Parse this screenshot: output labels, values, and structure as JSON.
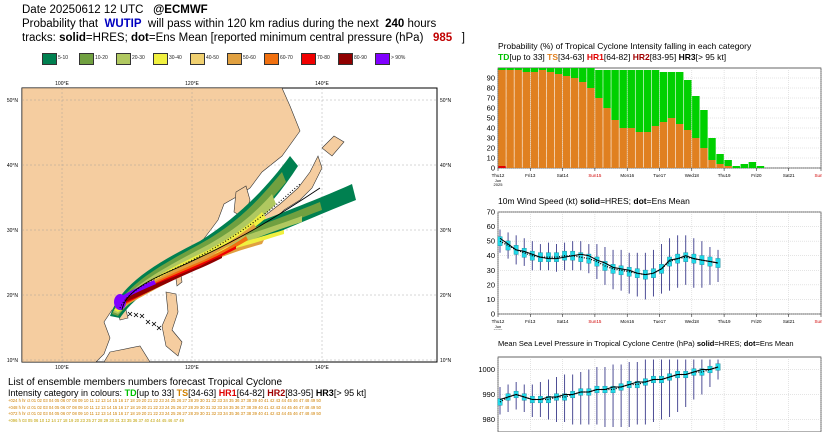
{
  "header": {
    "date_line": "Date 20250612 12 UTC",
    "source": "@ECMWF",
    "prob_prefix": "Probability that",
    "storm_name": "WUTIP",
    "prob_middle": "will pass within 120 km radius during the next",
    "hours": "240",
    "hours_suffix": "hours",
    "tracks_prefix": "tracks:",
    "solid_label": "solid",
    "hres_label": "=HRES;",
    "dot_label": "dot",
    "ens_label": "=Ens Mean [reported minimum central pressure (hPa)",
    "pressure": "985",
    "close_bracket": "]"
  },
  "legend": {
    "items": [
      {
        "label": "5-10",
        "color": "#008050"
      },
      {
        "label": "10-20",
        "color": "#70a040"
      },
      {
        "label": "20-30",
        "color": "#b0c860"
      },
      {
        "label": "30-40",
        "color": "#f0f040"
      },
      {
        "label": "40-50",
        "color": "#f0d070"
      },
      {
        "label": "50-60",
        "color": "#e0a040"
      },
      {
        "label": "60-70",
        "color": "#f07010"
      },
      {
        "label": "70-80",
        "color": "#f00000"
      },
      {
        "label": "80-90",
        "color": "#900000"
      },
      {
        "label": "> 90%",
        "color": "#8000ff"
      }
    ]
  },
  "map": {
    "lon_labels": [
      "100°E",
      "120°E",
      "140°E"
    ],
    "lat_labels": [
      "50°N",
      "40°N",
      "30°N",
      "20°N",
      "10°N"
    ]
  },
  "ensemble_list": {
    "title": "List of ensemble members numbers forecast Tropical Cyclone",
    "subtitle_prefix": "Intensity category in colours:",
    "td": "TD",
    "td_range": "[up to 33]",
    "ts": "TS",
    "ts_range": "[34-63]",
    "hr1": "HR1",
    "hr1_range": "[64-82]",
    "hr2": "HR2",
    "hr2_range": "[83-95]",
    "hr3": "HR3",
    "hr3_range": "[> 95 kt]",
    "rows": [
      "+024 h  hr ct 01 02 03 04 05 06 07 08 09 10 11 12 13 14 15 16 17 18 19 20 21 22 23 24 25 26 27 28 29 30 31 32 33 34 35 36 37 38 39 40 41 42 43 44 45 46 47 48 49 50",
      "+048 h  hr ct 01 02 03 04 05 06 07 08 09 10 11 12 13 14 15 16 17 18 19 20 21 22 23 24 25 26 27 28 29 30 31 32 33 34 35 36 37 38 39 40 41 42 43 44 45 46 47 48 49 50",
      "+072 h  hr ct 01 02 03 04 05 06 07 08 09 10 11 12 13 14 15 16 17 18 19 20 21 22 23 24 25 26 27 28 29 30 31 32 33 34 35 36 37 38 39 40 41 42 43 44 45 46 47 48 49 50",
      "+096 h           03       05 06          10    12       14             17 18 19 20          23    25    27 28 29 30 31    33       35 36 37    40       43 44 45 46 47       49"
    ]
  },
  "chart_data": [
    {
      "type": "bar",
      "title": "Probability (%) of Tropical Cyclone Intensity falling in each category",
      "legend_line": [
        {
          "name": "TD",
          "range": "[up to 33]",
          "color": "#00c000"
        },
        {
          "name": "TS",
          "range": "[34-63]",
          "color": "#e08020"
        },
        {
          "name": "HR1",
          "range": "[64-82]",
          "color": "#e00000"
        },
        {
          "name": "HR2",
          "range": "[83-95]",
          "color": "#a00000"
        },
        {
          "name": "HR3",
          "range": "[> 95 kt]",
          "color": "#000000"
        }
      ],
      "ylim": [
        0,
        100
      ],
      "yticks": [
        0,
        10,
        20,
        30,
        40,
        50,
        60,
        70,
        80,
        90
      ],
      "x_tick_labels": [
        "Thu12",
        "Fri13",
        "Sat14",
        "Sun15",
        "Mon16",
        "Tue17",
        "Wed18",
        "Thu19",
        "Fri20",
        "Sat21",
        "Sun22"
      ],
      "x_sub_label": [
        "Jun",
        "2025"
      ],
      "sunday_color": "#d00000",
      "series": [
        {
          "name": "HR1",
          "color": "#e00000",
          "values": [
            2,
            0,
            0,
            0,
            0,
            0,
            0,
            0,
            0,
            0,
            0,
            0,
            0,
            0,
            0,
            0,
            0,
            0,
            0,
            0,
            0,
            0,
            0,
            0,
            0,
            0,
            0,
            0,
            0,
            0,
            0,
            0,
            0,
            0,
            0,
            0,
            0,
            0,
            0,
            0,
            0,
            0,
            0
          ]
        },
        {
          "name": "TS",
          "color": "#e08020",
          "values": [
            96,
            98,
            98,
            96,
            96,
            98,
            96,
            94,
            92,
            90,
            86,
            80,
            70,
            60,
            48,
            40,
            40,
            36,
            36,
            42,
            46,
            50,
            44,
            38,
            30,
            20,
            8,
            4,
            2,
            0,
            0,
            0,
            0,
            0,
            0,
            0,
            0,
            0,
            0,
            0,
            0,
            0,
            0
          ]
        },
        {
          "name": "TD",
          "color": "#00d000",
          "values": [
            2,
            2,
            2,
            4,
            4,
            2,
            4,
            6,
            8,
            10,
            14,
            20,
            28,
            38,
            50,
            58,
            58,
            62,
            62,
            56,
            50,
            46,
            52,
            50,
            42,
            38,
            22,
            10,
            6,
            2,
            4,
            6,
            2,
            0,
            0,
            0,
            0,
            0,
            0,
            0,
            0,
            0,
            0
          ]
        }
      ]
    },
    {
      "type": "line",
      "title_prefix": "10m Wind Speed (kt)",
      "title_solid": "solid",
      "title_hres": "=HRES;",
      "title_dot": "dot",
      "title_ens": "=Ens Mean",
      "ylim": [
        0,
        70
      ],
      "yticks": [
        0,
        10,
        20,
        30,
        40,
        50,
        60,
        70
      ],
      "x_tick_labels": [
        "Thu12",
        "Fri13",
        "Sat14",
        "Sun15",
        "Mon16",
        "Tue17",
        "Wed18",
        "Thu19",
        "Fri20",
        "Sat21",
        "Sun22"
      ],
      "x_sub_label": [
        "Jun",
        "2025"
      ],
      "series": [
        {
          "name": "HRES",
          "values": [
            52,
            48,
            44,
            43,
            41,
            39,
            38,
            38,
            39,
            40,
            41,
            40,
            37,
            35,
            32,
            31,
            30,
            28,
            27,
            28,
            31,
            37,
            38,
            40,
            38,
            37,
            36,
            35
          ]
        },
        {
          "name": "Ens Mean",
          "values": [
            50,
            47,
            44,
            42,
            40,
            39,
            39,
            39,
            40,
            40,
            39,
            38,
            36,
            33,
            31,
            30,
            29,
            28,
            27,
            28,
            31,
            36,
            38,
            39,
            38,
            37,
            36,
            35
          ]
        }
      ],
      "spread": [
        [
          42,
          58
        ],
        [
          38,
          56
        ],
        [
          34,
          54
        ],
        [
          33,
          52
        ],
        [
          30,
          50
        ],
        [
          30,
          48
        ],
        [
          30,
          49
        ],
        [
          29,
          48
        ],
        [
          30,
          49
        ],
        [
          30,
          50
        ],
        [
          30,
          50
        ],
        [
          28,
          48
        ],
        [
          24,
          48
        ],
        [
          20,
          46
        ],
        [
          17,
          44
        ],
        [
          16,
          44
        ],
        [
          14,
          42
        ],
        [
          12,
          42
        ],
        [
          10,
          42
        ],
        [
          12,
          44
        ],
        [
          14,
          48
        ],
        [
          16,
          52
        ],
        [
          18,
          54
        ],
        [
          20,
          54
        ],
        [
          18,
          52
        ],
        [
          18,
          50
        ],
        [
          20,
          46
        ],
        [
          22,
          44
        ]
      ]
    },
    {
      "type": "line",
      "title_prefix": "Mean Sea Level Pressure in Tropical Cyclone Centre (hPa)",
      "title_solid": "solid",
      "title_hres": "=HRES;",
      "title_dot": "dot",
      "title_ens": "=Ens Mean",
      "ylim": [
        975,
        1005
      ],
      "yticks": [
        980,
        990,
        1000
      ],
      "series": [
        {
          "name": "HRES",
          "values": [
            988,
            989,
            990,
            989,
            988,
            988,
            989,
            989,
            990,
            990,
            991,
            991,
            992,
            992,
            993,
            993,
            994,
            995,
            995,
            996,
            996,
            997,
            998,
            998,
            999,
            1000,
            1000,
            1001
          ]
        },
        {
          "name": "Ens Mean",
          "values": [
            987,
            989,
            990,
            989,
            988,
            988,
            988,
            989,
            989,
            990,
            991,
            991,
            992,
            992,
            992,
            993,
            994,
            994,
            995,
            996,
            996,
            997,
            998,
            998,
            999,
            999,
            1000,
            1001
          ]
        }
      ],
      "spread": [
        [
          982,
          993
        ],
        [
          983,
          994
        ],
        [
          984,
          995
        ],
        [
          983,
          994
        ],
        [
          981,
          994
        ],
        [
          981,
          995
        ],
        [
          980,
          996
        ],
        [
          979,
          997
        ],
        [
          979,
          998
        ],
        [
          978,
          998
        ],
        [
          978,
          999
        ],
        [
          978,
          1000
        ],
        [
          978,
          1001
        ],
        [
          977,
          1001
        ],
        [
          977,
          1002
        ],
        [
          977,
          1002
        ],
        [
          977,
          1003
        ],
        [
          978,
          1003
        ],
        [
          978,
          1004
        ],
        [
          979,
          1004
        ],
        [
          980,
          1004
        ],
        [
          981,
          1004
        ],
        [
          983,
          1004
        ],
        [
          985,
          1004
        ],
        [
          988,
          1004
        ],
        [
          990,
          1004
        ],
        [
          993,
          1004
        ],
        [
          996,
          1004
        ]
      ]
    }
  ]
}
